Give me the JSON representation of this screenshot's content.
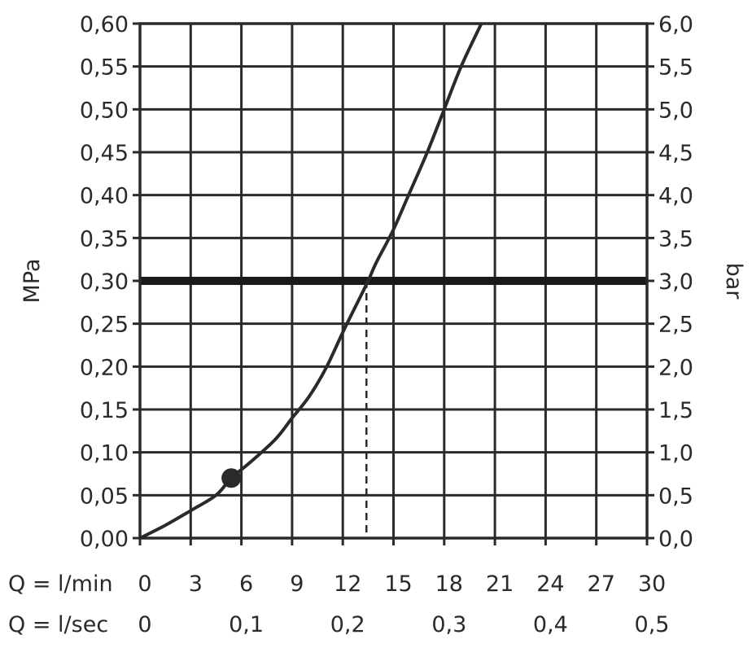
{
  "chart_data": {
    "type": "line",
    "y_left": {
      "label": "MPa",
      "ticks": [
        "0,00",
        "0,05",
        "0,10",
        "0,15",
        "0,20",
        "0,25",
        "0,30",
        "0,35",
        "0,40",
        "0,45",
        "0,50",
        "0,55",
        "0,60"
      ],
      "range": [
        0,
        0.6
      ]
    },
    "y_right": {
      "label": "bar",
      "ticks": [
        "0,0",
        "0,5",
        "1,0",
        "1,5",
        "2,0",
        "2,5",
        "3,0",
        "3,5",
        "4,0",
        "4,5",
        "5,0",
        "5,5",
        "6,0"
      ],
      "range": [
        0,
        6
      ]
    },
    "x_lmin": {
      "label": "Q = l/min",
      "ticks": [
        {
          "value": 0,
          "label": "0"
        },
        {
          "value": 3,
          "label": "3"
        },
        {
          "value": 6,
          "label": "6"
        },
        {
          "value": 9,
          "label": "9"
        },
        {
          "value": 12,
          "label": "12"
        },
        {
          "value": 15,
          "label": "15"
        },
        {
          "value": 18,
          "label": "18"
        },
        {
          "value": 21,
          "label": "21"
        },
        {
          "value": 24,
          "label": "24"
        },
        {
          "value": 27,
          "label": "27"
        },
        {
          "value": 30,
          "label": "30"
        }
      ],
      "range": [
        0,
        30
      ]
    },
    "x_lsec": {
      "label": "Q = l/sec",
      "ticks": [
        {
          "value": 0,
          "label": "0"
        },
        {
          "value": 6,
          "label": "0,1"
        },
        {
          "value": 12,
          "label": "0,2"
        },
        {
          "value": 18,
          "label": "0,3"
        },
        {
          "value": 24,
          "label": "0,4"
        },
        {
          "value": 30,
          "label": "0,5"
        }
      ]
    },
    "grid": true,
    "series": [
      {
        "x": [
          0,
          1.5,
          3,
          4.5,
          5.4,
          6.5,
          8,
          9,
          10,
          11,
          12,
          13,
          13.5,
          14,
          15,
          16,
          17,
          18,
          19,
          20.2
        ],
        "y": [
          0,
          0.015,
          0.032,
          0.05,
          0.07,
          0.088,
          0.115,
          0.14,
          0.165,
          0.198,
          0.24,
          0.28,
          0.3,
          0.322,
          0.36,
          0.405,
          0.45,
          0.5,
          0.55,
          0.6
        ]
      }
    ],
    "reference_line": {
      "y": 0.3
    },
    "dashed_drop": {
      "x": 13.4,
      "y_from": 0.3,
      "y_to": 0
    },
    "marker": {
      "x": 5.4,
      "y": 0.07
    }
  }
}
